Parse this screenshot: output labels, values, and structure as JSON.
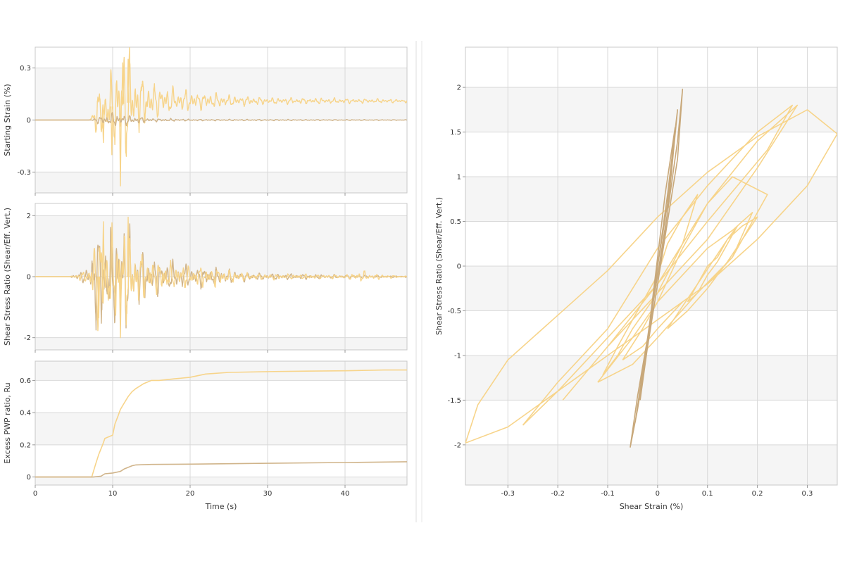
{
  "chart_data": [
    {
      "type": "line",
      "ylabel": "Starting Strain (%)",
      "xlabel": "",
      "xlim": [
        0,
        48
      ],
      "ylim": [
        -0.42,
        0.42
      ],
      "xticks": [
        0,
        10,
        20,
        30,
        40
      ],
      "yticks": [
        -0.3,
        0,
        0.3
      ],
      "yticklabels": [
        "-0.3",
        "0",
        "0.3"
      ],
      "grid": true,
      "series": [
        {
          "color": "#f7d48a",
          "envelope": [
            [
              0,
              0
            ],
            [
              7.2,
              0
            ],
            [
              8,
              0.15
            ],
            [
              9,
              0.18
            ],
            [
              10,
              0.2
            ],
            [
              11,
              0.33
            ],
            [
              12,
              0.34
            ],
            [
              13,
              0.2
            ],
            [
              15,
              0.12
            ],
            [
              17,
              0.08
            ],
            [
              20,
              0.06
            ],
            [
              25,
              0.035
            ],
            [
              30,
              0.02
            ],
            [
              40,
              0.015
            ],
            [
              48,
              0.01
            ]
          ],
          "baseline": [
            [
              0,
              0
            ],
            [
              7,
              0
            ],
            [
              8.5,
              0.05
            ],
            [
              10,
              0.08
            ],
            [
              12,
              0.1
            ],
            [
              14,
              0.105
            ],
            [
              16,
              0.11
            ],
            [
              48,
              0.11
            ]
          ],
          "spikes": [
            [
              11.0,
              -0.38
            ],
            [
              8.8,
              -0.13
            ],
            [
              9.9,
              -0.2
            ],
            [
              12.0,
              0.35
            ],
            [
              11.3,
              0.33
            ]
          ]
        },
        {
          "color": "#d0b48a",
          "envelope": [
            [
              0,
              0
            ],
            [
              7.2,
              0
            ],
            [
              8,
              0.02
            ],
            [
              10,
              0.04
            ],
            [
              12,
              0.03
            ],
            [
              15,
              0.01
            ],
            [
              20,
              0.005
            ],
            [
              48,
              0.002
            ]
          ],
          "baseline": [
            [
              0,
              0
            ],
            [
              48,
              0
            ]
          ],
          "spikes": []
        }
      ]
    },
    {
      "type": "line",
      "ylabel": "Shear Stress Ratio (Shear/Eff. Vert.)",
      "xlabel": "",
      "xlim": [
        0,
        48
      ],
      "ylim": [
        -2.4,
        2.4
      ],
      "xticks": [
        0,
        10,
        20,
        30,
        40
      ],
      "yticks": [
        -2,
        0,
        2
      ],
      "yticklabels": [
        "-2",
        "0",
        "2"
      ],
      "grid": true,
      "series": [
        {
          "color": "#d0b48a",
          "envelope": [
            [
              0,
              0
            ],
            [
              4.5,
              0
            ],
            [
              5,
              0.08
            ],
            [
              7,
              0.3
            ],
            [
              7.5,
              1.5
            ],
            [
              8.5,
              1.8
            ],
            [
              10,
              1.5
            ],
            [
              11,
              1.8
            ],
            [
              12,
              1.7
            ],
            [
              13,
              1.0
            ],
            [
              15,
              0.6
            ],
            [
              18,
              0.45
            ],
            [
              20,
              0.35
            ],
            [
              23,
              0.3
            ],
            [
              28,
              0.12
            ],
            [
              35,
              0.08
            ],
            [
              40,
              0.06
            ],
            [
              43,
              0.06
            ],
            [
              44,
              0.04
            ],
            [
              48,
              0.02
            ]
          ],
          "baseline": [
            [
              0,
              0
            ],
            [
              48,
              0
            ]
          ],
          "spikes": []
        },
        {
          "color": "#f7d48a",
          "envelope": [
            [
              0,
              0
            ],
            [
              4.5,
              0
            ],
            [
              5,
              0.06
            ],
            [
              7,
              0.25
            ],
            [
              7.5,
              1.4
            ],
            [
              8.5,
              1.7
            ],
            [
              10,
              1.4
            ],
            [
              11,
              1.7
            ],
            [
              12,
              1.6
            ],
            [
              13,
              1.0
            ],
            [
              15,
              0.6
            ],
            [
              18,
              0.45
            ],
            [
              20,
              0.35
            ],
            [
              23,
              0.3
            ],
            [
              28,
              0.1
            ],
            [
              35,
              0.08
            ],
            [
              40,
              0.06
            ],
            [
              42.5,
              0.2
            ],
            [
              43,
              0.1
            ],
            [
              48,
              0.02
            ]
          ],
          "baseline": [
            [
              0,
              0
            ],
            [
              48,
              0
            ]
          ],
          "spikes": [
            [
              12.0,
              1.95
            ],
            [
              11.0,
              -2.0
            ],
            [
              8.8,
              1.8
            ],
            [
              8.2,
              -1.35
            ]
          ]
        }
      ]
    },
    {
      "type": "line",
      "ylabel": "Excess PWP ratio, Ru",
      "xlabel": "Time (s)",
      "xlim": [
        0,
        48
      ],
      "ylim": [
        -0.05,
        0.72
      ],
      "xticks": [
        0,
        10,
        20,
        30,
        40
      ],
      "xticklabels": [
        "0",
        "10",
        "20",
        "30",
        "40"
      ],
      "yticks": [
        0,
        0.2,
        0.4,
        0.6
      ],
      "yticklabels": [
        "0",
        "0.2",
        "0.4",
        "0.6"
      ],
      "grid": true,
      "series": [
        {
          "color": "#f7d48a",
          "x": [
            0,
            7.3,
            7.8,
            8.2,
            8.7,
            9.0,
            10.0,
            10.3,
            10.7,
            11.0,
            11.5,
            12.0,
            12.5,
            13.0,
            14.0,
            15.0,
            16.0,
            18.0,
            20.0,
            22.0,
            25.0,
            30.0,
            35.0,
            40.0,
            45.0,
            48.0
          ],
          "y": [
            0,
            0,
            0.08,
            0.14,
            0.2,
            0.24,
            0.26,
            0.33,
            0.38,
            0.42,
            0.46,
            0.5,
            0.53,
            0.55,
            0.58,
            0.6,
            0.6,
            0.61,
            0.62,
            0.64,
            0.65,
            0.655,
            0.658,
            0.66,
            0.665,
            0.665
          ]
        },
        {
          "color": "#d0b48a",
          "x": [
            0,
            7.5,
            8.5,
            9.0,
            10.0,
            11.0,
            11.5,
            12.0,
            12.5,
            13.0,
            15.0,
            20.0,
            30.0,
            40.0,
            48.0
          ],
          "y": [
            0,
            0,
            0.005,
            0.02,
            0.025,
            0.035,
            0.05,
            0.06,
            0.07,
            0.075,
            0.078,
            0.08,
            0.085,
            0.09,
            0.095
          ]
        }
      ]
    },
    {
      "type": "scatter",
      "ylabel": "Shear Stress Ratio (Shear/Eff. Vert.)",
      "xlabel": "Shear Strain (%)",
      "xlim": [
        -0.385,
        0.36
      ],
      "ylim": [
        -2.45,
        2.45
      ],
      "xticks": [
        -0.3,
        -0.2,
        -0.1,
        0,
        0.1,
        0.2,
        0.3
      ],
      "xticklabels": [
        "-0.3",
        "-0.2",
        "-0.1",
        "0",
        "0.1",
        "0.2",
        "0.3"
      ],
      "yticks": [
        -2,
        -1.5,
        -1,
        -0.5,
        0,
        0.5,
        1,
        1.5,
        2
      ],
      "yticklabels": [
        "-2",
        "-1.5",
        "-1",
        "-0.5",
        "0",
        "0.5",
        "1",
        "1.5",
        "2"
      ],
      "grid": true,
      "series": [
        {
          "color": "#f7d48a",
          "mode": "loops",
          "loops": [
            {
              "x": [
                -0.385,
                -0.36,
                -0.3,
                -0.2,
                -0.1,
                0,
                0.1,
                0.2,
                0.3,
                0.36,
                0.3,
                0.2,
                0.1,
                0,
                -0.1,
                -0.2,
                -0.3,
                -0.385
              ],
              "y": [
                -1.98,
                -1.55,
                -1.05,
                -0.55,
                -0.05,
                0.55,
                1.05,
                1.45,
                1.75,
                1.48,
                0.9,
                0.3,
                -0.2,
                -0.6,
                -1.0,
                -1.4,
                -1.8,
                -1.98
              ]
            },
            {
              "x": [
                -0.27,
                -0.2,
                -0.1,
                0,
                0.1,
                0.2,
                0.27,
                0.22,
                0.1,
                0,
                -0.1,
                -0.2,
                -0.27
              ],
              "y": [
                -1.78,
                -1.3,
                -0.7,
                0.2,
                0.9,
                1.5,
                1.8,
                1.3,
                0.5,
                -0.2,
                -0.8,
                -1.4,
                -1.78
              ]
            },
            {
              "x": [
                -0.19,
                -0.1,
                0,
                0.1,
                0.2,
                0.28,
                0.2,
                0.1,
                0,
                -0.1,
                -0.19
              ],
              "y": [
                -1.5,
                -0.9,
                -0.2,
                0.7,
                1.4,
                1.8,
                1.1,
                0.3,
                -0.3,
                -0.9,
                -1.5
              ]
            },
            {
              "x": [
                -0.12,
                -0.05,
                0,
                0.05,
                0.1,
                0.15,
                0.22,
                0.15,
                0.08,
                0,
                -0.05,
                -0.12
              ],
              "y": [
                -1.3,
                -0.8,
                -0.4,
                0.2,
                0.7,
                1.0,
                0.8,
                0.1,
                -0.3,
                -0.8,
                -1.1,
                -1.3
              ]
            },
            {
              "x": [
                -0.07,
                -0.03,
                0,
                0.05,
                0.1,
                0.15,
                0.19,
                0.15,
                0.1,
                0.05,
                0,
                -0.03,
                -0.07
              ],
              "y": [
                -1.05,
                -0.7,
                -0.4,
                -0.1,
                0.2,
                0.4,
                0.6,
                0.1,
                -0.2,
                -0.4,
                -0.7,
                -0.9,
                -1.05
              ]
            },
            {
              "x": [
                -0.11,
                -0.08,
                -0.05,
                0,
                0.02,
                0.05,
                0.08,
                0.05,
                0,
                -0.05,
                -0.08,
                -0.11
              ],
              "y": [
                -1.22,
                -0.9,
                -0.6,
                -0.1,
                0.25,
                0.55,
                0.8,
                0.25,
                -0.3,
                -0.7,
                -1.0,
                -1.22
              ]
            },
            {
              "x": [
                0.02,
                0.05,
                0.08,
                0.11,
                0.14,
                0.17,
                0.2,
                0.17,
                0.14,
                0.1,
                0.06,
                0.02
              ],
              "y": [
                -0.7,
                -0.45,
                -0.2,
                0.05,
                0.3,
                0.45,
                0.55,
                0.3,
                0.05,
                -0.25,
                -0.5,
                -0.7
              ]
            },
            {
              "x": [
                0.06,
                0.08,
                0.1,
                0.12,
                0.14,
                0.16,
                0.14,
                0.12,
                0.1,
                0.08,
                0.06
              ],
              "y": [
                -0.4,
                -0.2,
                0.0,
                0.1,
                0.3,
                0.45,
                0.25,
                0.05,
                -0.1,
                -0.3,
                -0.4
              ]
            }
          ]
        },
        {
          "color": "#c8a87a",
          "mode": "loops",
          "loops": [
            {
              "x": [
                -0.055,
                -0.04,
                -0.02,
                0,
                0.02,
                0.04,
                0.05,
                0.04,
                0.02,
                0,
                -0.02,
                -0.04,
                -0.055
              ],
              "y": [
                -2.03,
                -1.45,
                -0.8,
                -0.1,
                0.6,
                1.4,
                1.98,
                1.2,
                0.5,
                -0.2,
                -0.9,
                -1.6,
                -2.03
              ]
            },
            {
              "x": [
                -0.045,
                -0.02,
                0,
                0.02,
                0.04,
                0.02,
                0,
                -0.02,
                -0.045
              ],
              "y": [
                -1.75,
                -0.9,
                -0.2,
                0.6,
                1.75,
                0.8,
                0.0,
                -0.8,
                -1.75
              ]
            },
            {
              "x": [
                -0.035,
                -0.015,
                0,
                0.02,
                0.035,
                0.015,
                0,
                -0.015,
                -0.035
              ],
              "y": [
                -1.5,
                -0.7,
                0.0,
                0.7,
                1.55,
                0.8,
                0.1,
                -0.6,
                -1.5
              ]
            }
          ]
        }
      ]
    }
  ]
}
